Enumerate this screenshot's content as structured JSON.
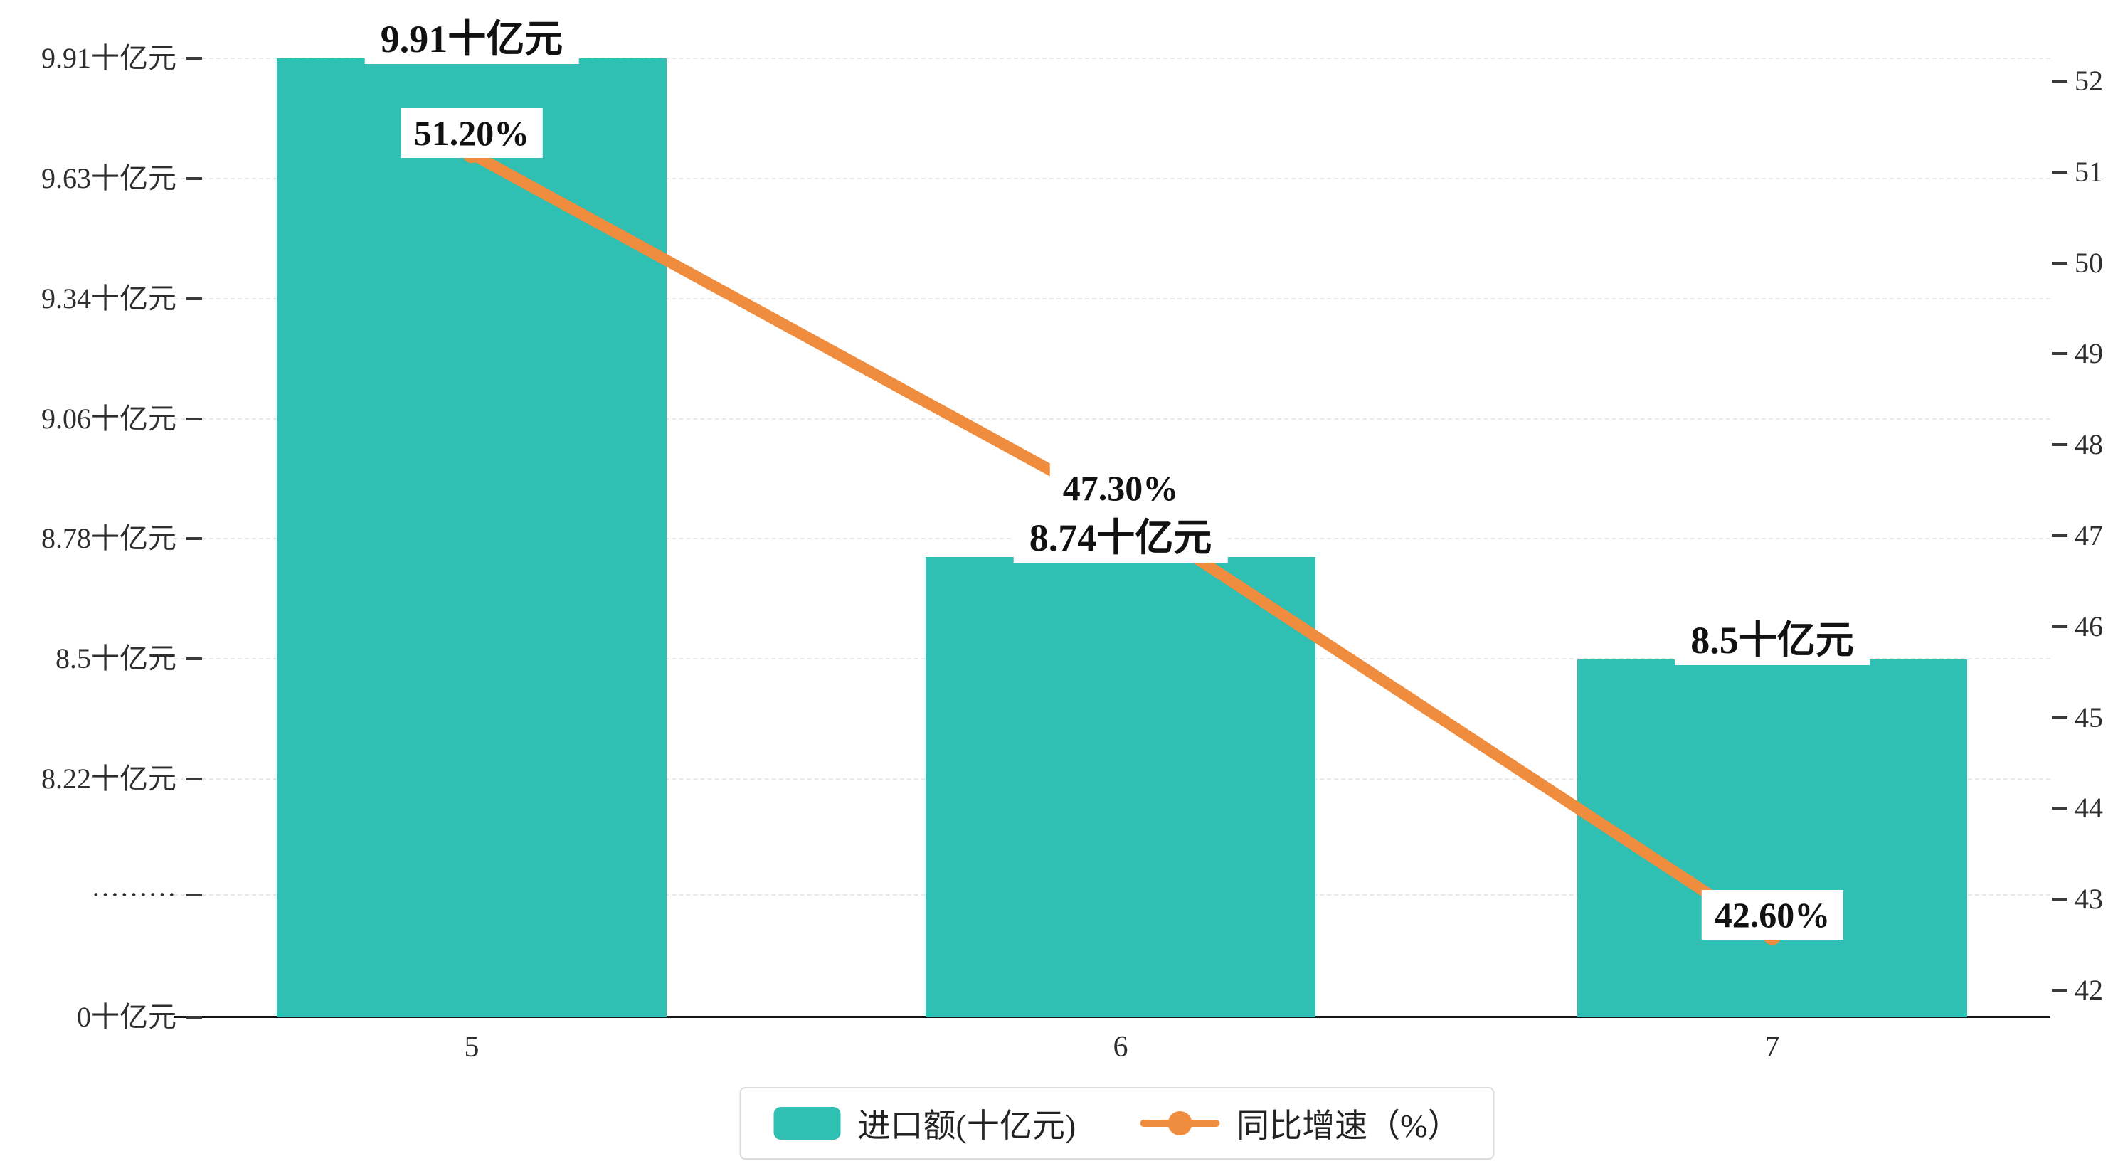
{
  "chart_data": {
    "type": "bar",
    "combo": "bar+line",
    "categories": [
      "5",
      "6",
      "7"
    ],
    "series": [
      {
        "name": "进口额(十亿元)",
        "type": "bar",
        "color": "#2fbfb3",
        "values": [
          9.91,
          8.74,
          8.5
        ],
        "labels": [
          "9.91十亿元",
          "8.74十亿元",
          "8.5十亿元"
        ]
      },
      {
        "name": "同比增速（%）",
        "type": "line",
        "color": "#ef8c3e",
        "axis": "right",
        "values": [
          51.2,
          47.3,
          42.6
        ],
        "labels": [
          "51.20%",
          "47.30%",
          "42.60%"
        ]
      }
    ],
    "left_axis": {
      "unit": "十亿元",
      "top_value": 9.91,
      "break_value": 8.22,
      "labels": [
        "9.91十亿元",
        "9.63十亿元",
        "9.34十亿元",
        "9.06十亿元",
        "8.78十亿元",
        "8.5十亿元",
        "8.22十亿元",
        "·········",
        "0十亿元"
      ]
    },
    "right_axis": {
      "min": 42,
      "max": 52,
      "labels": [
        "52",
        "51",
        "50",
        "49",
        "48",
        "47",
        "46",
        "45",
        "44",
        "43",
        "42"
      ]
    },
    "grid": "dashed horizontal",
    "legend_position": "bottom-center",
    "title": ""
  }
}
